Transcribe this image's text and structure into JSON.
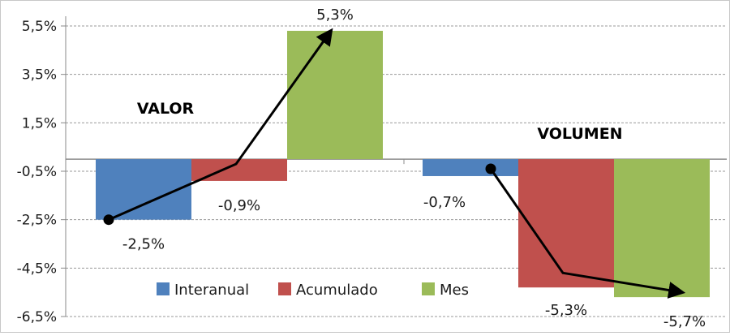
{
  "chart_data": {
    "type": "bar",
    "groups": [
      {
        "label": "VALOR",
        "values": [
          -2.5,
          -0.9,
          5.3
        ],
        "labels": [
          "-2,5%",
          "-0,9%",
          "5,3%"
        ]
      },
      {
        "label": "VOLUMEN",
        "values": [
          -0.7,
          -5.3,
          -5.7
        ],
        "labels": [
          "-0,7%",
          "-5,3%",
          "-5,7%"
        ]
      }
    ],
    "series": [
      {
        "name": "Interanual",
        "color": "#4f81bd"
      },
      {
        "name": "Acumulado",
        "color": "#c0504d"
      },
      {
        "name": "Mes",
        "color": "#9bbb59"
      }
    ],
    "yticks": [
      "5,5%",
      "3,5%",
      "1,5%",
      "-0,5%",
      "-2,5%",
      "-4,5%",
      "-6,5%"
    ],
    "ytick_values": [
      5.5,
      3.5,
      1.5,
      -0.5,
      -2.5,
      -4.5,
      -6.5
    ],
    "ylim": [
      -6.5,
      5.5
    ],
    "grid": true,
    "legend_position": "bottom-center",
    "trend_arrows": [
      {
        "group": "VALOR",
        "values": [
          -2.5,
          -0.2,
          5.3
        ],
        "color": "#000000"
      },
      {
        "group": "VOLUMEN",
        "values": [
          -0.4,
          -4.7,
          -5.5
        ],
        "color": "#000000"
      }
    ]
  }
}
